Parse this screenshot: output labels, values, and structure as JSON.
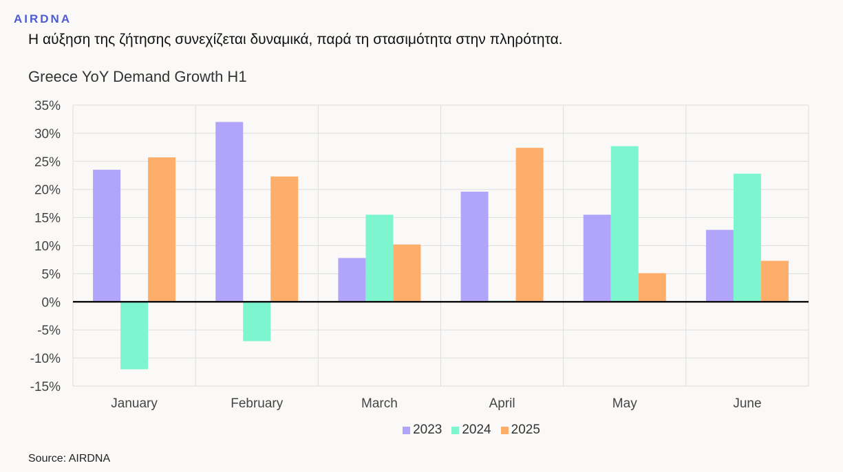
{
  "header": {
    "logo": "AIRDNA",
    "headline": "Η αύξηση της ζήτησης συνεχίζεται δυναμικά, παρά τη στασιμότητα στην πληρότητα."
  },
  "source": "Source: AIRDNA",
  "chart_data": {
    "type": "bar",
    "title": "Greece YoY Demand Growth H1",
    "xlabel": "",
    "ylabel": "",
    "categories": [
      "January",
      "February",
      "March",
      "April",
      "May",
      "June"
    ],
    "series": [
      {
        "name": "2023",
        "color": "#b0a5fa",
        "values": [
          23.5,
          32,
          7.8,
          19.6,
          15.5,
          12.8
        ]
      },
      {
        "name": "2024",
        "color": "#7df5cf",
        "values": [
          -12,
          -7,
          15.5,
          0.2,
          27.7,
          22.8
        ]
      },
      {
        "name": "2025",
        "color": "#fdae6b",
        "values": [
          25.7,
          22.3,
          10.2,
          27.4,
          5.1,
          7.3
        ]
      }
    ],
    "ylim": [
      -15,
      35
    ],
    "yticks": [
      35,
      30,
      25,
      20,
      15,
      10,
      5,
      0,
      -5,
      -10,
      -15
    ],
    "ytick_labels": [
      "35%",
      "30%",
      "25%",
      "20%",
      "15%",
      "10%",
      "5%",
      "0%",
      "-5%",
      "-10%",
      "-15%"
    ],
    "grid": true,
    "legend_position": "bottom"
  }
}
